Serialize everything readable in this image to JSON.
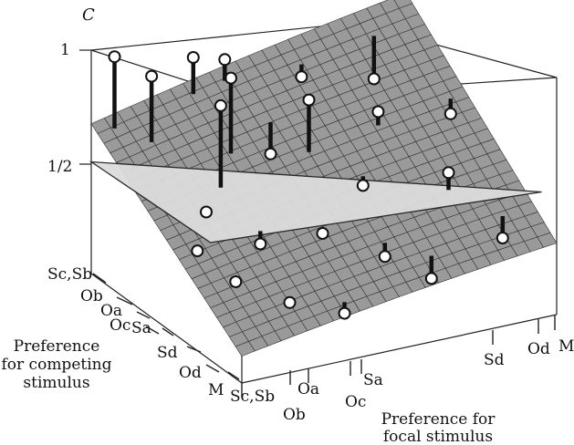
{
  "chart_data": {
    "type": "3d-surface-scatter",
    "z_axis": {
      "label": "C",
      "ticks": [
        {
          "label": "1",
          "value": 1
        },
        {
          "label": "1/2",
          "value": 0.5
        }
      ],
      "range": [
        0,
        1
      ]
    },
    "competing_axis": {
      "title_lines": [
        "Preference",
        "for competing",
        "stimulus"
      ],
      "ticks": [
        "Sc,Sb",
        "Ob",
        "Oa",
        "Oc",
        "Sa",
        "Sd",
        "Od",
        "M"
      ]
    },
    "focal_axis": {
      "title_lines": [
        "Preference for",
        "focal stimulus"
      ],
      "ticks": [
        "Sc,Sb",
        "Ob",
        "Oa",
        "Oc",
        "Sa",
        "Sd",
        "Od",
        "M"
      ]
    },
    "surface": {
      "description": "model fit",
      "color": "#9a9a9a"
    },
    "reference_plane": {
      "value": 0.5,
      "color": "#dcdcdc"
    },
    "points": [
      {
        "u": 0.05,
        "v": 0.95,
        "c": 0.98
      },
      {
        "u": 0.12,
        "v": 0.85,
        "c": 0.92
      },
      {
        "u": 0.22,
        "v": 0.6,
        "c": 0.88
      },
      {
        "u": 0.3,
        "v": 0.95,
        "c": 0.9
      },
      {
        "u": 0.3,
        "v": 0.7,
        "c": 0.93
      },
      {
        "u": 0.4,
        "v": 0.95,
        "c": 0.86
      },
      {
        "u": 0.5,
        "v": 0.6,
        "c": 0.82
      },
      {
        "u": 0.62,
        "v": 0.9,
        "c": 0.74
      },
      {
        "u": 0.72,
        "v": 0.6,
        "c": 0.7
      },
      {
        "u": 0.85,
        "v": 0.9,
        "c": 0.66
      },
      {
        "u": 0.95,
        "v": 0.6,
        "c": 0.62
      },
      {
        "u": 0.8,
        "v": 0.3,
        "c": 0.55
      },
      {
        "u": 0.4,
        "v": 0.3,
        "c": 0.4
      },
      {
        "u": 0.55,
        "v": 0.2,
        "c": 0.3
      },
      {
        "u": 0.2,
        "v": 0.1,
        "c": 0.25
      },
      {
        "u": 0.1,
        "v": 0.25,
        "c": 0.3
      },
      {
        "u": 0.35,
        "v": 0.05,
        "c": 0.18
      },
      {
        "u": 0.65,
        "v": 0.1,
        "c": 0.22
      },
      {
        "u": 0.9,
        "v": 0.15,
        "c": 0.3
      },
      {
        "u": 0.15,
        "v": 0.55,
        "c": 0.45
      },
      {
        "u": 0.05,
        "v": 0.4,
        "c": 0.38
      },
      {
        "u": 0.45,
        "v": 0.75,
        "c": 0.52
      },
      {
        "u": 0.6,
        "v": 0.45,
        "c": 0.48
      },
      {
        "u": 0.25,
        "v": 0.4,
        "c": 0.35
      }
    ]
  }
}
